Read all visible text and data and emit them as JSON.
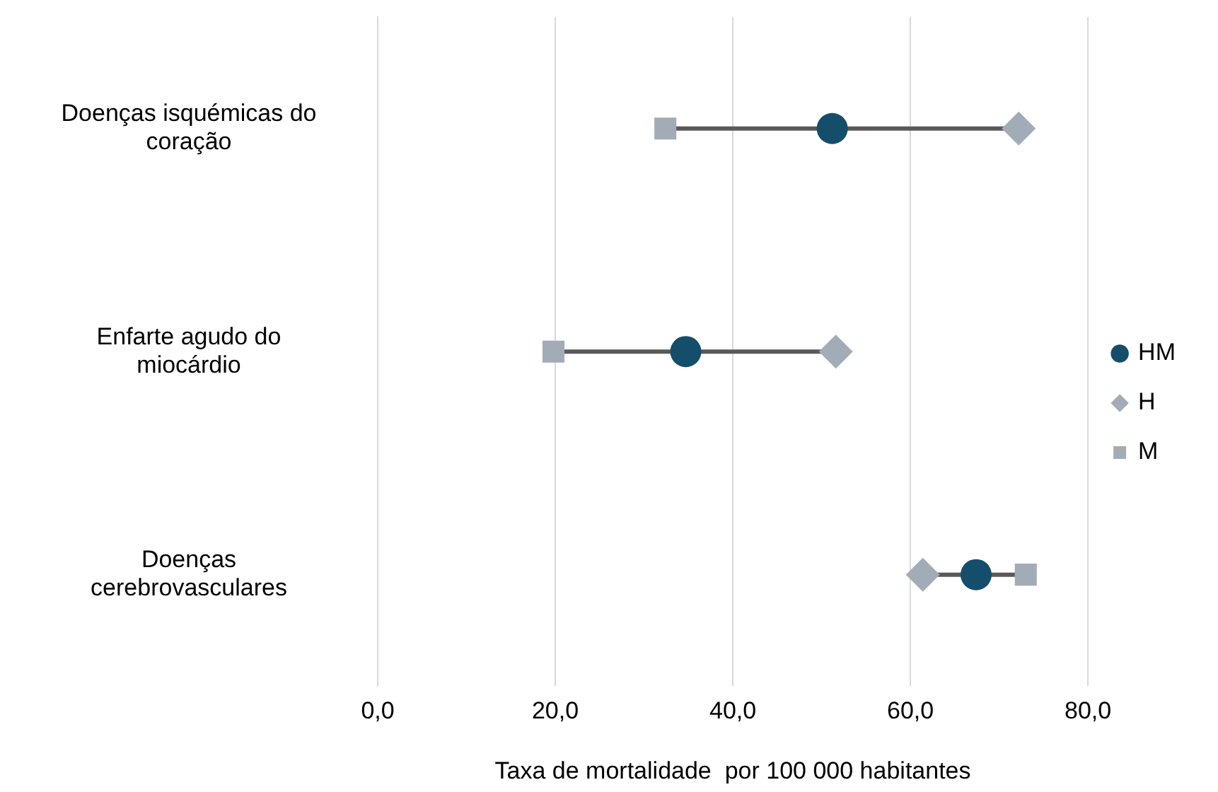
{
  "chart_data": {
    "type": "scatter",
    "orientation": "horizontal",
    "xlabel": "Taxa de mortalidade  por 100 000 habitantes",
    "categories": [
      "Doenças isquémicas do coração",
      "Enfarte agudo do miocárdio",
      "Doenças cerebrovasculares"
    ],
    "series": [
      {
        "name": "HM",
        "color": "#144e6a",
        "marker": "circle",
        "values": [
          51.2,
          34.7,
          67.4
        ]
      },
      {
        "name": "H",
        "color": "#a2acb6",
        "marker": "diamond",
        "values": [
          72.2,
          51.6,
          61.4
        ]
      },
      {
        "name": "M",
        "color": "#a2acb6",
        "marker": "square",
        "values": [
          32.4,
          19.8,
          73.0
        ]
      }
    ],
    "xlim": [
      0,
      80
    ],
    "xticks": [
      {
        "value": 0,
        "label": "0,0"
      },
      {
        "value": 20,
        "label": "20,0"
      },
      {
        "value": 40,
        "label": "40,0"
      },
      {
        "value": 60,
        "label": "60,0"
      },
      {
        "value": 80,
        "label": "80,0"
      }
    ],
    "grid": "x",
    "legend": "right"
  }
}
